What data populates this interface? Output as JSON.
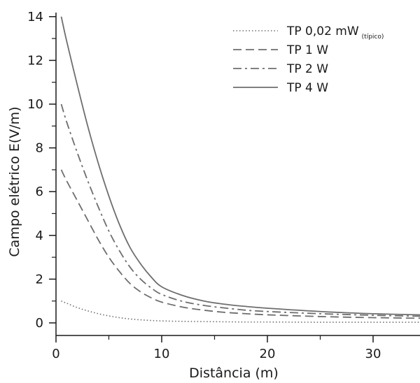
{
  "chart_data": {
    "type": "line",
    "title": "",
    "xlabel": "Distância (m)",
    "ylabel": "Campo elétrico E(V/m)",
    "xlim": [
      0,
      35
    ],
    "ylim": [
      0,
      14
    ],
    "xticks_major": [
      0,
      10,
      20,
      30
    ],
    "xticks_minor": [
      5,
      15,
      25,
      35
    ],
    "yticks_major": [
      0,
      2,
      4,
      6,
      8,
      10,
      12,
      14
    ],
    "yticks_minor": [
      1,
      3,
      5,
      7,
      9,
      11,
      13
    ],
    "grid": false,
    "legend_position": "top-right",
    "x": [
      0.5,
      1,
      2,
      3,
      4,
      5,
      6,
      7,
      8,
      9,
      10,
      12,
      14,
      16,
      18,
      20,
      25,
      30,
      35
    ],
    "series": [
      {
        "name": "TP 0,02 mW",
        "name_subscript": "(típico)",
        "style": "dotted",
        "values": [
          1.0,
          0.9,
          0.7,
          0.55,
          0.42,
          0.32,
          0.24,
          0.18,
          0.14,
          0.11,
          0.09,
          0.07,
          0.06,
          0.05,
          0.04,
          0.04,
          0.03,
          0.03,
          0.03
        ]
      },
      {
        "name": "TP 1 W",
        "style": "dashed",
        "values": [
          7.0,
          6.5,
          5.6,
          4.7,
          3.8,
          3.0,
          2.35,
          1.8,
          1.42,
          1.15,
          0.95,
          0.72,
          0.58,
          0.48,
          0.42,
          0.37,
          0.29,
          0.24,
          0.21
        ]
      },
      {
        "name": "TP 2 W",
        "style": "dash-dot",
        "values": [
          10.0,
          9.2,
          7.8,
          6.5,
          5.3,
          4.2,
          3.3,
          2.55,
          2.0,
          1.6,
          1.3,
          0.98,
          0.8,
          0.68,
          0.58,
          0.52,
          0.42,
          0.35,
          0.3
        ]
      },
      {
        "name": "TP 4 W",
        "style": "solid",
        "values": [
          14.0,
          12.9,
          10.9,
          9.0,
          7.3,
          5.8,
          4.5,
          3.45,
          2.7,
          2.1,
          1.65,
          1.25,
          1.0,
          0.85,
          0.75,
          0.67,
          0.52,
          0.42,
          0.36
        ]
      }
    ]
  }
}
